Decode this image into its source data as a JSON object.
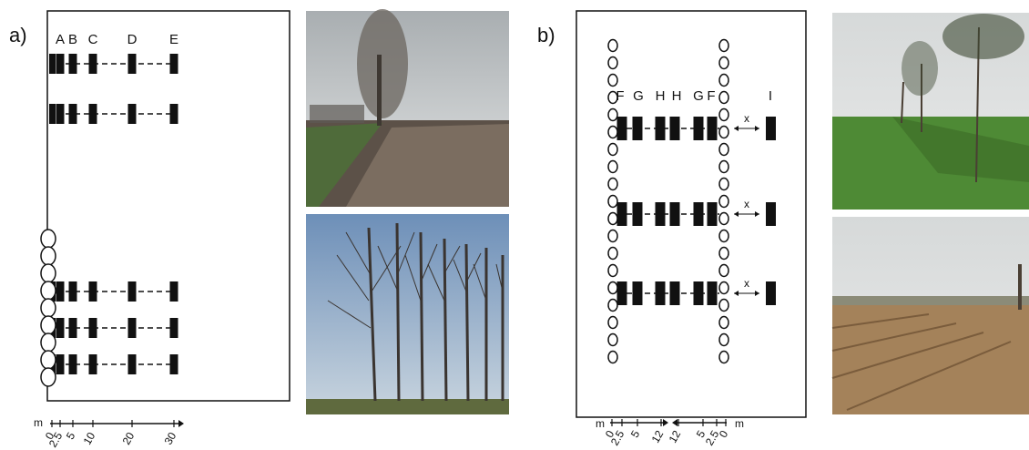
{
  "panel_a": {
    "label": "a)",
    "columns": [
      "A",
      "B",
      "C",
      "D",
      "E"
    ],
    "axis": {
      "unit": "m",
      "ticks": [
        "0",
        "2.5",
        "5",
        "10",
        "20",
        "30"
      ]
    }
  },
  "panel_b": {
    "label": "b)",
    "columns": [
      "F",
      "G",
      "H",
      "H",
      "G",
      "F",
      "I"
    ],
    "distance_labels": [
      "x",
      "x",
      "x"
    ],
    "axis": {
      "unit_left": "m",
      "unit_right": "m",
      "ticks_left": [
        "0",
        "2.5",
        "5",
        "12"
      ],
      "ticks_right": [
        "12",
        "5",
        "2.5",
        "0"
      ]
    }
  }
}
